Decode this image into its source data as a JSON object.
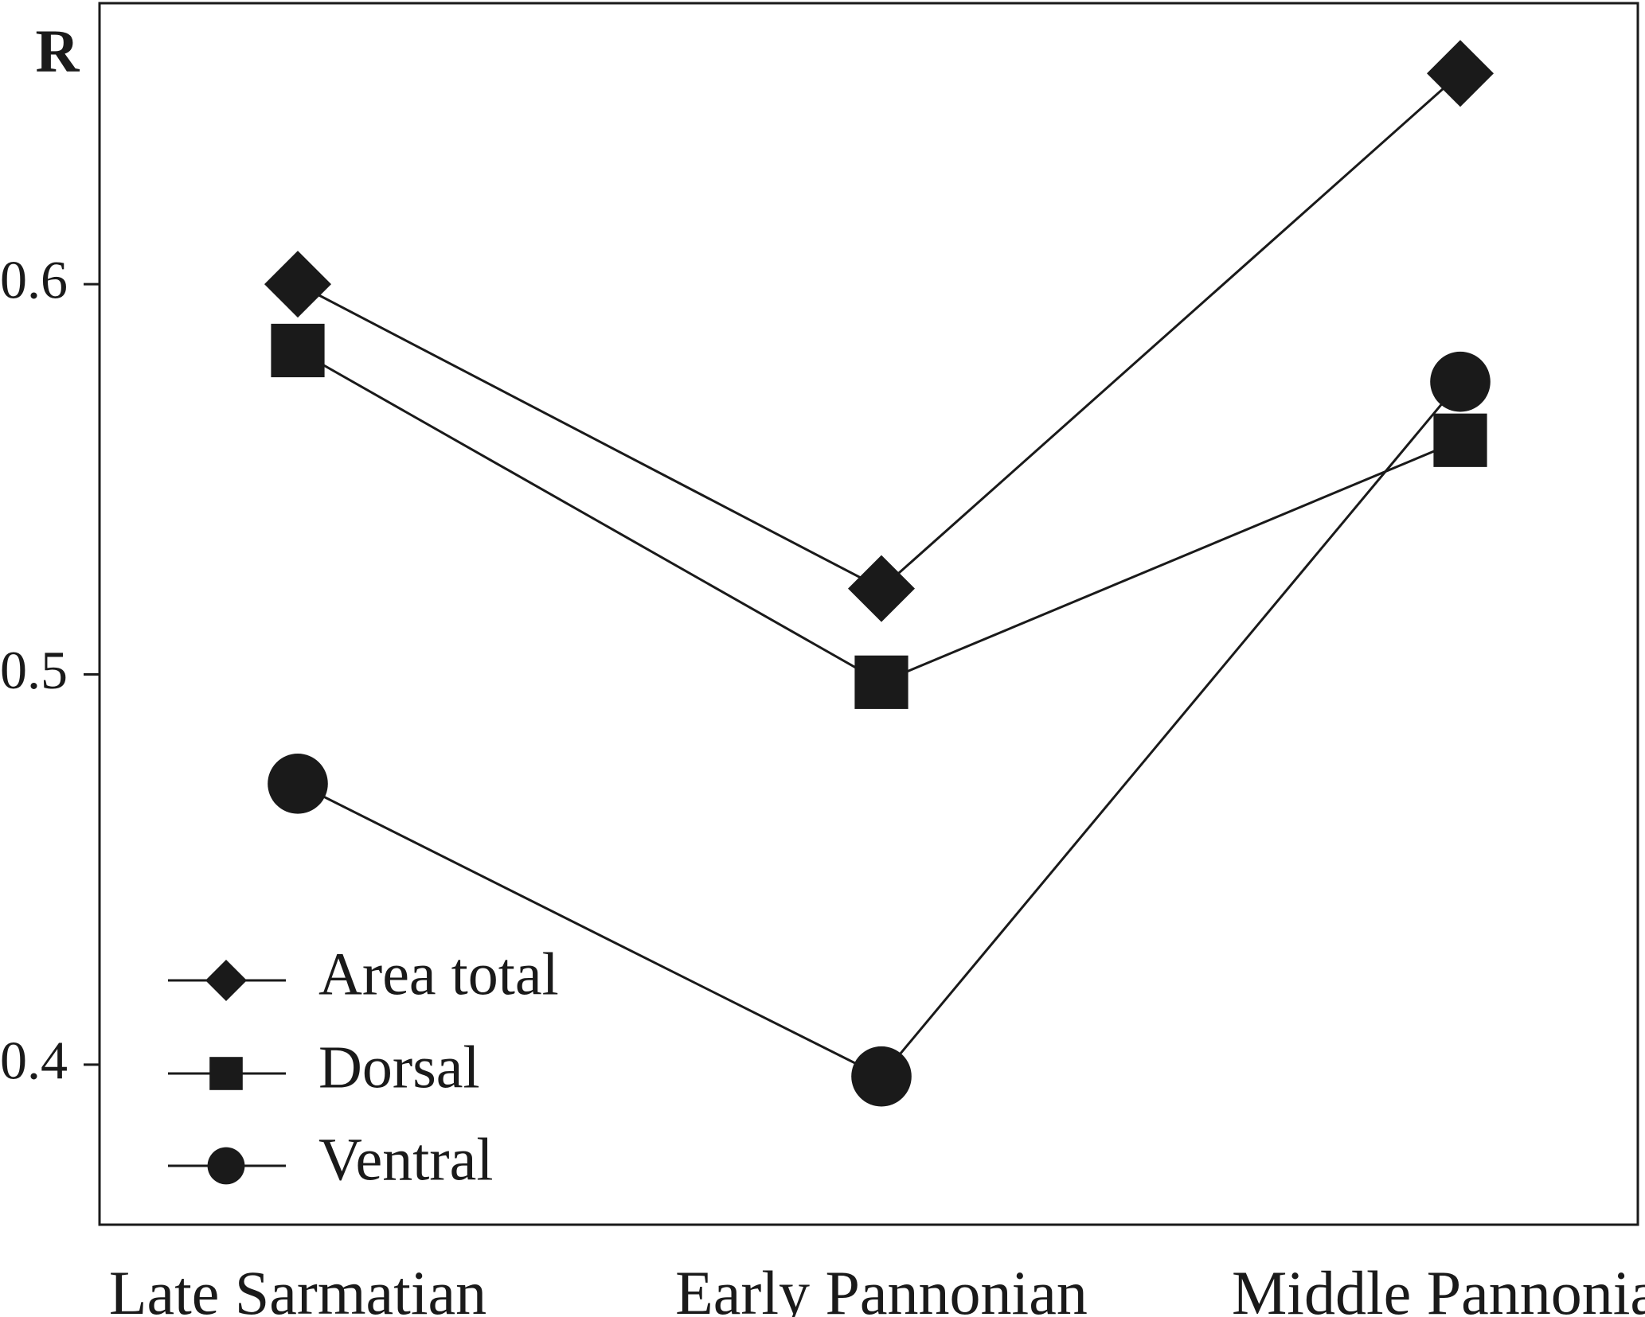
{
  "chart_data": {
    "type": "line",
    "ylabel": "R",
    "categories": [
      "Late Sarmatian",
      "Early Pannonian",
      "Middle Pannonian"
    ],
    "series": [
      {
        "name": "Area total",
        "color": "#1a1a1a",
        "marker": "diamond",
        "values": [
          0.6,
          0.522,
          0.654
        ]
      },
      {
        "name": "Dorsal",
        "color": "#1a1a1a",
        "marker": "square",
        "values": [
          0.583,
          0.498,
          0.56
        ]
      },
      {
        "name": "Ventral",
        "color": "#1a1a1a",
        "marker": "circle",
        "values": [
          0.472,
          0.397,
          0.575
        ]
      }
    ],
    "ylim": [
      0.359,
      0.672
    ],
    "yticks": [
      0.4,
      0.5,
      0.6
    ],
    "legend": "lower left"
  }
}
